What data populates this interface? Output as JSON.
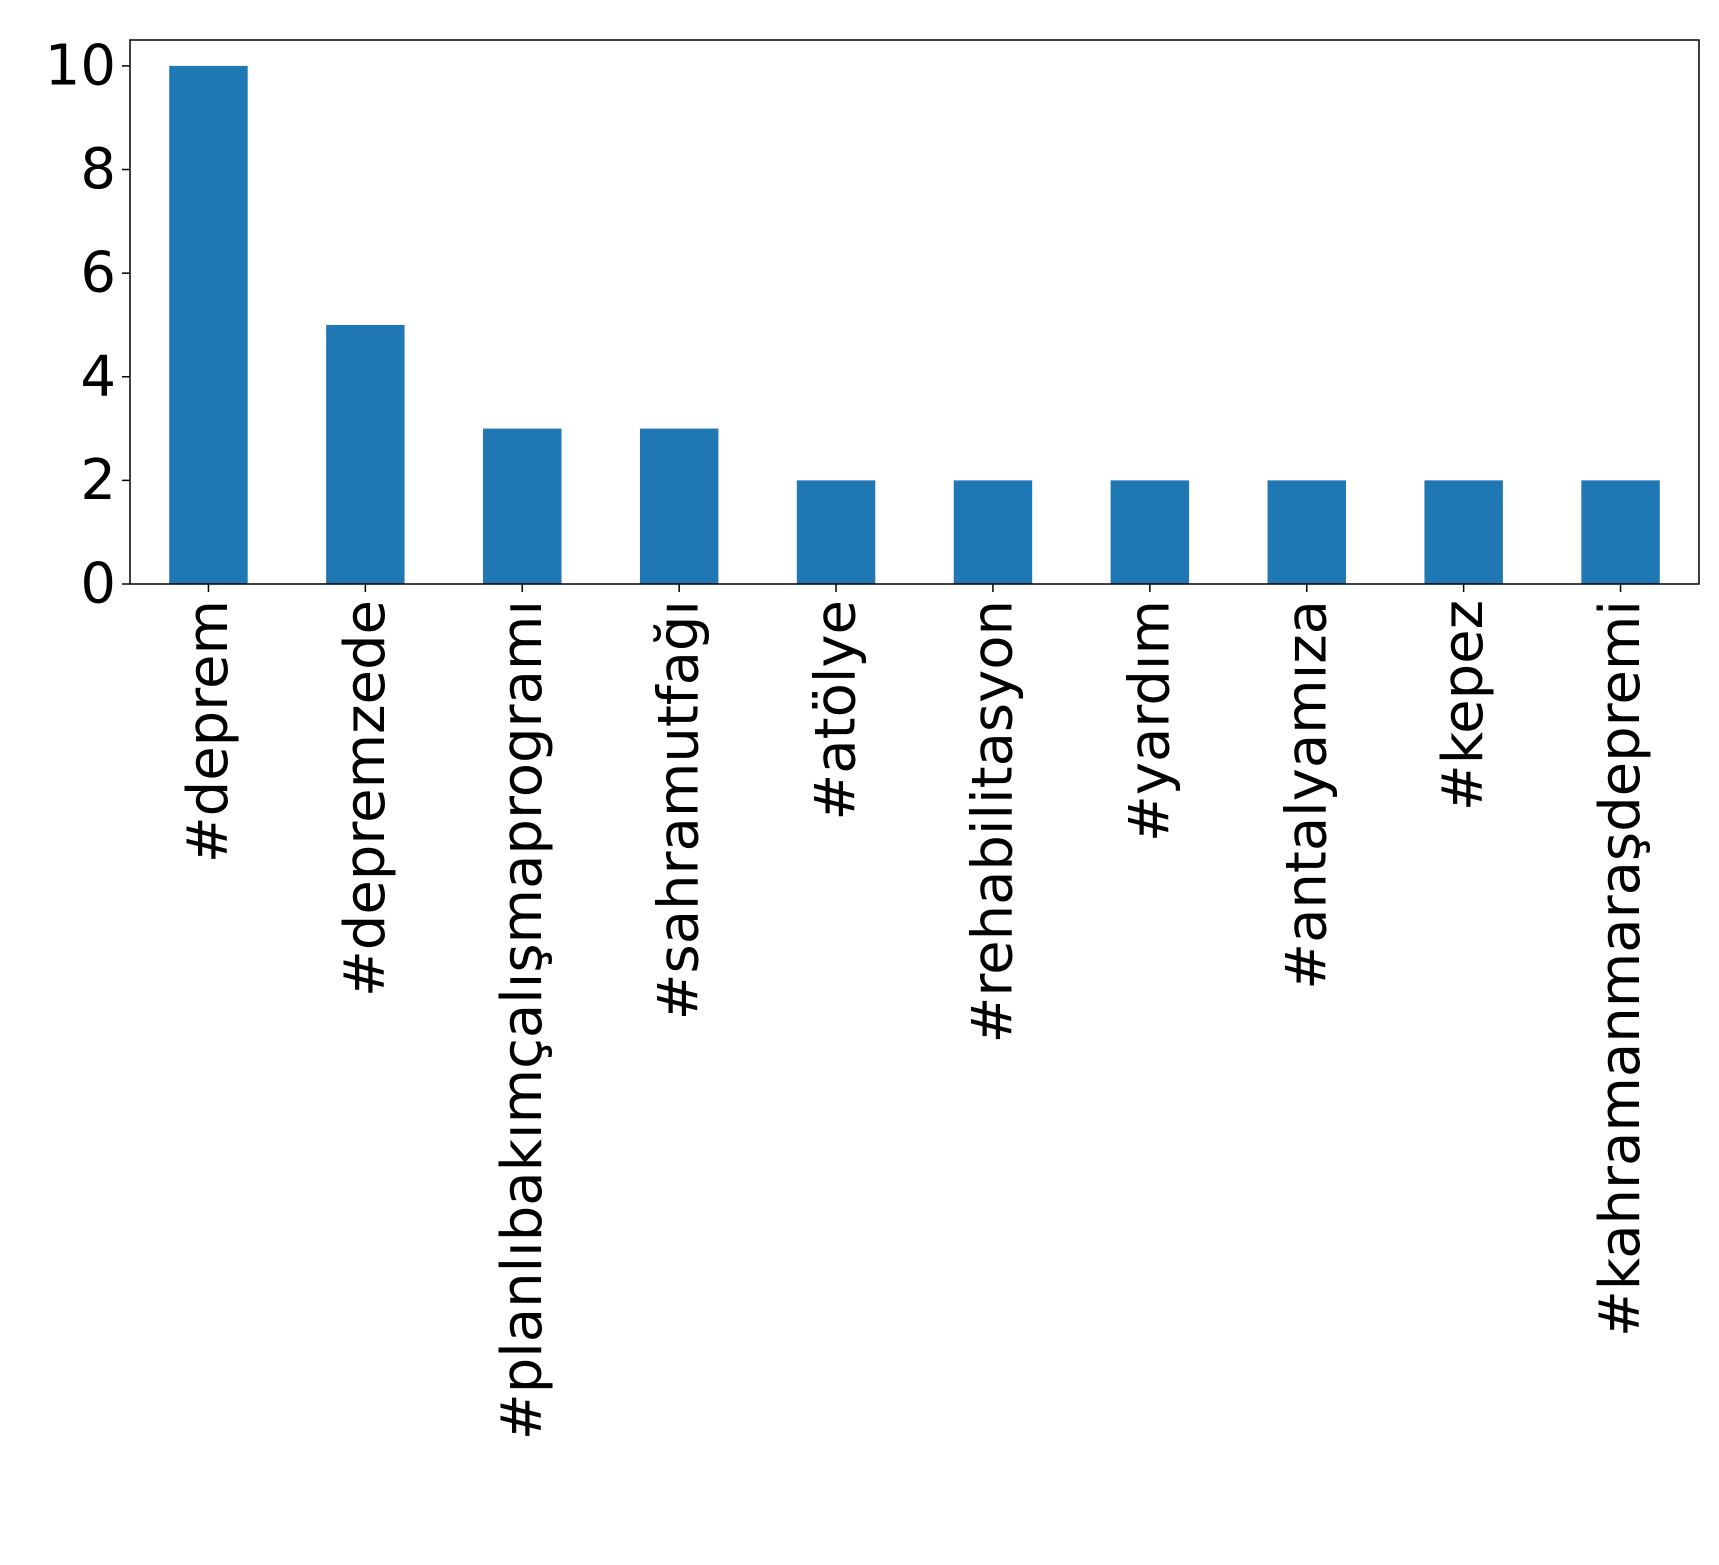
{
  "chart_data": {
    "type": "bar",
    "categories": [
      "#deprem",
      "#depremzede",
      "#planlıbakımçalışmaprogramı",
      "#sahramutfağı",
      "#atölye",
      "#rehabilitasyon",
      "#yardım",
      "#antalyamıza",
      "#kepez",
      "#kahramanmaraşdepremi"
    ],
    "values": [
      10,
      5,
      3,
      3,
      2,
      2,
      2,
      2,
      2,
      2
    ],
    "title": "",
    "xlabel": "",
    "ylabel": "",
    "ylim": [
      0,
      10.5
    ],
    "yticks": [
      0,
      2,
      4,
      6,
      8,
      10
    ],
    "grid": false,
    "bar_color": "#1f77b4"
  }
}
